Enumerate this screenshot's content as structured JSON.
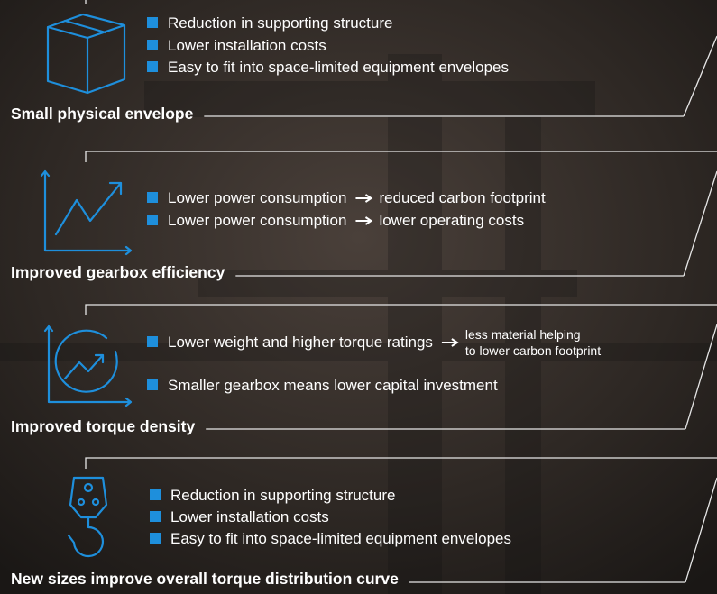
{
  "sections": [
    {
      "title": "Small physical envelope",
      "bullets": [
        {
          "text": "Reduction in supporting structure"
        },
        {
          "text": "Lower installation costs"
        },
        {
          "text": "Easy to fit into space-limited equipment envelopes"
        }
      ]
    },
    {
      "title": "Improved gearbox efficiency",
      "bullets": [
        {
          "text": "Lower power consumption",
          "result": [
            "reduced carbon footprint"
          ]
        },
        {
          "text": "Lower power consumption",
          "result": [
            "lower operating costs"
          ]
        }
      ]
    },
    {
      "title": "Improved torque density",
      "bullets": [
        {
          "text": "Lower weight and higher torque ratings",
          "result": [
            "less material helping",
            "to lower carbon footprint"
          ]
        },
        {
          "text": "Smaller gearbox means lower capital investment"
        }
      ]
    },
    {
      "title": "New sizes improve overall torque distribution curve",
      "bullets": [
        {
          "text": "Reduction in supporting structure"
        },
        {
          "text": "Lower installation costs"
        },
        {
          "text": "Easy to fit into space-limited equipment envelopes"
        }
      ]
    }
  ]
}
